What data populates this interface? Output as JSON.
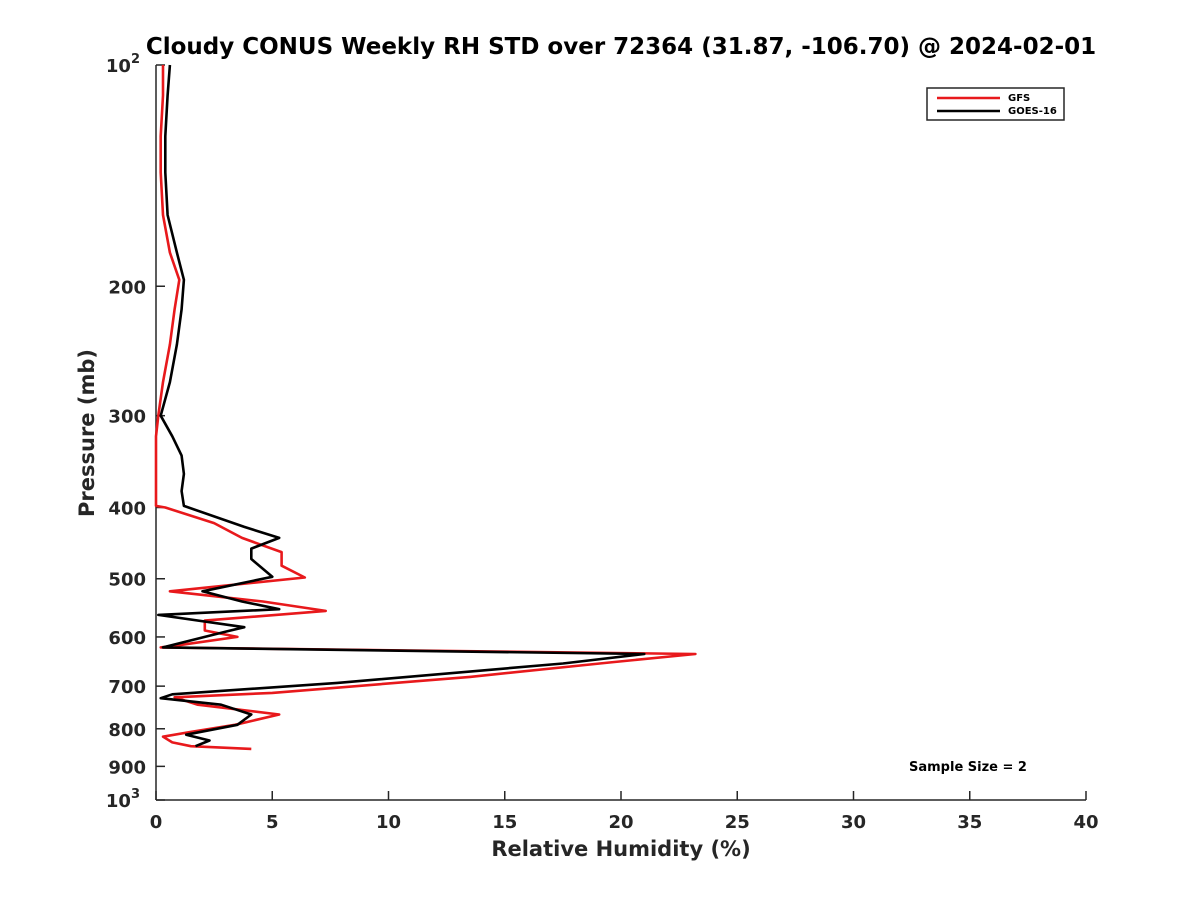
{
  "chart_data": {
    "type": "line",
    "title": "Cloudy CONUS Weekly RH STD over 72364 (31.87, -106.70) @ 2024-02-01",
    "xlabel": "Relative Humidity (%)",
    "ylabel": "Pressure (mb)",
    "xlim": [
      0,
      40
    ],
    "ylim": [
      100,
      1000
    ],
    "y_scale": "log",
    "y_reversed": true,
    "grid": false,
    "legend_position": "top-right",
    "x_ticks": [
      "0",
      "5",
      "10",
      "15",
      "20",
      "25",
      "30",
      "35",
      "40"
    ],
    "x_tick_values": [
      0,
      5,
      10,
      15,
      20,
      25,
      30,
      35,
      40
    ],
    "y_ticks": [
      {
        "value": 100,
        "base": "10",
        "exp": "2"
      },
      {
        "value": 200,
        "label": "200"
      },
      {
        "value": 300,
        "label": "300"
      },
      {
        "value": 400,
        "label": "400"
      },
      {
        "value": 500,
        "label": "500"
      },
      {
        "value": 600,
        "label": "600"
      },
      {
        "value": 700,
        "label": "700"
      },
      {
        "value": 800,
        "label": "800"
      },
      {
        "value": 900,
        "label": "900"
      },
      {
        "value": 1000,
        "base": "10",
        "exp": "3"
      }
    ],
    "annotation": "Sample Size = 2",
    "series": [
      {
        "name": "GFS",
        "color": "#e8191c",
        "points": [
          [
            0.3,
            100
          ],
          [
            0.3,
            110
          ],
          [
            0.2,
            125
          ],
          [
            0.2,
            140
          ],
          [
            0.3,
            160
          ],
          [
            0.6,
            180
          ],
          [
            1.0,
            196
          ],
          [
            0.8,
            215
          ],
          [
            0.6,
            240
          ],
          [
            0.3,
            270
          ],
          [
            0.1,
            300
          ],
          [
            0.0,
            320
          ],
          [
            0.0,
            350
          ],
          [
            0.0,
            380
          ],
          [
            0.0,
            398
          ],
          [
            0.4,
            400
          ],
          [
            2.5,
            420
          ],
          [
            3.7,
            440
          ],
          [
            5.4,
            460
          ],
          [
            5.4,
            480
          ],
          [
            6.4,
            498
          ],
          [
            0.6,
            520
          ],
          [
            4.6,
            537
          ],
          [
            7.3,
            553
          ],
          [
            2.1,
            570
          ],
          [
            2.1,
            588
          ],
          [
            3.5,
            600
          ],
          [
            1.1,
            615
          ],
          [
            0.2,
            620
          ],
          [
            23.2,
            633
          ],
          [
            19.5,
            650
          ],
          [
            13.5,
            680
          ],
          [
            5.0,
            715
          ],
          [
            0.8,
            725
          ],
          [
            1.8,
            742
          ],
          [
            5.3,
            765
          ],
          [
            3.4,
            790
          ],
          [
            1.5,
            808
          ],
          [
            0.3,
            820
          ],
          [
            0.7,
            835
          ],
          [
            1.5,
            845
          ],
          [
            4.1,
            852
          ]
        ]
      },
      {
        "name": "GOES-16",
        "color": "#000000",
        "points": [
          [
            0.6,
            100
          ],
          [
            0.5,
            110
          ],
          [
            0.4,
            125
          ],
          [
            0.4,
            140
          ],
          [
            0.5,
            160
          ],
          [
            0.9,
            180
          ],
          [
            1.2,
            196
          ],
          [
            1.1,
            215
          ],
          [
            0.9,
            240
          ],
          [
            0.6,
            270
          ],
          [
            0.2,
            300
          ],
          [
            0.7,
            320
          ],
          [
            1.1,
            340
          ],
          [
            1.2,
            360
          ],
          [
            1.1,
            380
          ],
          [
            1.2,
            398
          ],
          [
            3.8,
            425
          ],
          [
            5.3,
            440
          ],
          [
            4.1,
            455
          ],
          [
            4.1,
            470
          ],
          [
            5.0,
            497
          ],
          [
            2.0,
            520
          ],
          [
            3.7,
            537
          ],
          [
            5.3,
            550
          ],
          [
            0.1,
            560
          ],
          [
            3.8,
            582
          ],
          [
            3.0,
            590
          ],
          [
            0.3,
            620
          ],
          [
            21.0,
            633
          ],
          [
            17.5,
            652
          ],
          [
            7.8,
            693
          ],
          [
            0.7,
            718
          ],
          [
            0.2,
            727
          ],
          [
            2.8,
            742
          ],
          [
            4.1,
            765
          ],
          [
            3.5,
            790
          ],
          [
            1.3,
            815
          ],
          [
            2.3,
            830
          ],
          [
            1.7,
            845
          ]
        ]
      }
    ]
  }
}
